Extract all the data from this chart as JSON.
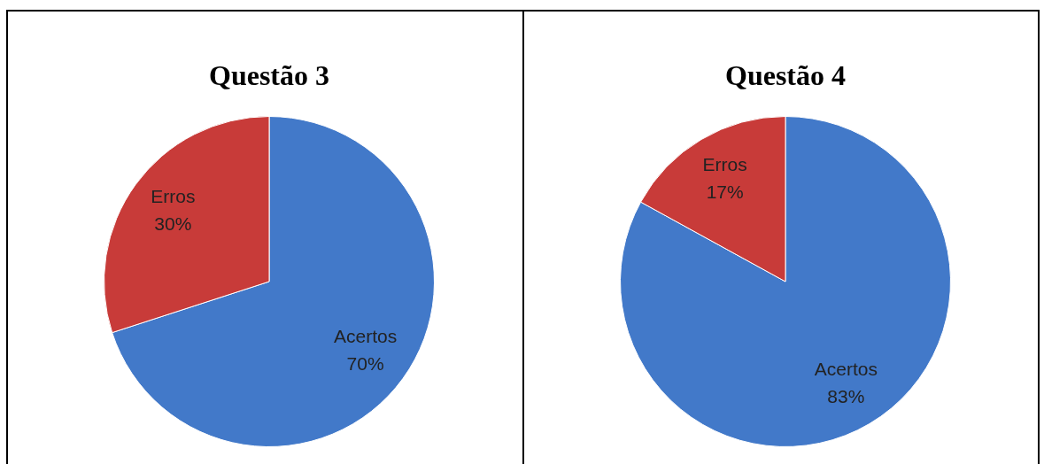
{
  "chart_data": [
    {
      "type": "pie",
      "title": "Questão 3",
      "categories": [
        "Acertos",
        "Erros"
      ],
      "values": [
        70,
        30
      ],
      "colors": [
        "#4279c9",
        "#c83b39"
      ],
      "value_labels": [
        "70%",
        "30%"
      ]
    },
    {
      "type": "pie",
      "title": "Questão 4",
      "categories": [
        "Acertos",
        "Erros"
      ],
      "values": [
        83,
        17
      ],
      "colors": [
        "#4279c9",
        "#c83b39"
      ],
      "value_labels": [
        "83%",
        "17%"
      ]
    }
  ]
}
